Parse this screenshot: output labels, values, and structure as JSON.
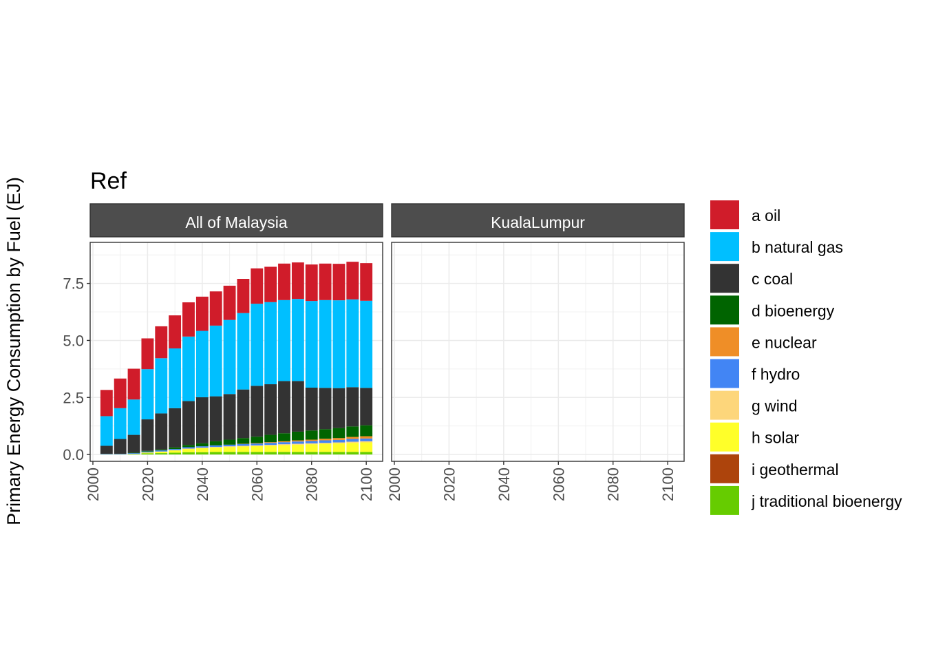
{
  "chart_data": {
    "type": "bar",
    "stacked": true,
    "title": "Ref",
    "ylabel": "Primary Energy Consumption by Fuel (EJ)",
    "xlabel": "",
    "ylim": [
      -0.3,
      9.3
    ],
    "xlim": [
      1999,
      2106
    ],
    "yticks": [
      0.0,
      2.5,
      5.0,
      7.5
    ],
    "ytick_labels": [
      "0.0",
      "2.5",
      "5.0",
      "7.5"
    ],
    "xticks": [
      2000,
      2020,
      2040,
      2060,
      2080,
      2100
    ],
    "xtick_labels": [
      "2000",
      "2020",
      "2040",
      "2060",
      "2080",
      "2100"
    ],
    "grid": true,
    "legend_position": "right",
    "x": [
      2005,
      2010,
      2015,
      2020,
      2025,
      2030,
      2035,
      2040,
      2045,
      2050,
      2055,
      2060,
      2065,
      2070,
      2075,
      2080,
      2085,
      2090,
      2095,
      2100
    ],
    "fuels": [
      {
        "name": "a oil",
        "color": "#d01c2a"
      },
      {
        "name": "b natural gas",
        "color": "#00bfff"
      },
      {
        "name": "c coal",
        "color": "#333333"
      },
      {
        "name": "d bioenergy",
        "color": "#006400"
      },
      {
        "name": "e nuclear",
        "color": "#ef8e27"
      },
      {
        "name": "f hydro",
        "color": "#4285f4"
      },
      {
        "name": "g wind",
        "color": "#fdd67b"
      },
      {
        "name": "h solar",
        "color": "#ffff29"
      },
      {
        "name": "i geothermal",
        "color": "#ad440c"
      },
      {
        "name": "j traditional bioenergy",
        "color": "#66cc00"
      }
    ],
    "panels": [
      {
        "name": "All of Malaysia",
        "series": [
          {
            "name": "a oil",
            "values": [
              1.15,
              1.3,
              1.35,
              1.35,
              1.4,
              1.45,
              1.5,
              1.5,
              1.5,
              1.5,
              1.5,
              1.55,
              1.55,
              1.6,
              1.6,
              1.6,
              1.6,
              1.6,
              1.65,
              1.65
            ]
          },
          {
            "name": "b natural gas",
            "values": [
              1.3,
              1.35,
              1.55,
              2.2,
              2.42,
              2.62,
              2.83,
              2.91,
              3.1,
              3.25,
              3.35,
              3.6,
              3.6,
              3.55,
              3.6,
              3.8,
              3.85,
              3.85,
              3.85,
              3.82
            ]
          },
          {
            "name": "c coal",
            "values": [
              0.35,
              0.65,
              0.78,
              1.38,
              1.58,
              1.72,
              1.92,
              2.02,
              1.97,
              2.0,
              2.13,
              2.23,
              2.22,
              2.29,
              2.22,
              1.88,
              1.81,
              1.75,
              1.72,
              1.64
            ]
          },
          {
            "name": "d bioenergy",
            "values": [
              0.0,
              0.0,
              0.02,
              0.03,
              0.04,
              0.07,
              0.1,
              0.13,
              0.18,
              0.22,
              0.25,
              0.28,
              0.32,
              0.35,
              0.38,
              0.4,
              0.42,
              0.44,
              0.46,
              0.48
            ]
          },
          {
            "name": "e nuclear",
            "values": [
              0,
              0,
              0,
              0,
              0,
              0,
              0,
              0,
              0,
              0,
              0.01,
              0.02,
              0.03,
              0.04,
              0.05,
              0.06,
              0.07,
              0.08,
              0.09,
              0.1
            ]
          },
          {
            "name": "f hydro",
            "values": [
              0.02,
              0.02,
              0.03,
              0.04,
              0.05,
              0.05,
              0.06,
              0.06,
              0.07,
              0.07,
              0.08,
              0.08,
              0.09,
              0.09,
              0.1,
              0.1,
              0.11,
              0.11,
              0.12,
              0.12
            ]
          },
          {
            "name": "g wind",
            "values": [
              0,
              0,
              0,
              0.01,
              0.01,
              0.01,
              0.02,
              0.02,
              0.02,
              0.03,
              0.03,
              0.03,
              0.03,
              0.04,
              0.04,
              0.04,
              0.04,
              0.04,
              0.05,
              0.05
            ]
          },
          {
            "name": "h solar",
            "values": [
              0,
              0,
              0.01,
              0.03,
              0.06,
              0.1,
              0.14,
              0.18,
              0.2,
              0.22,
              0.24,
              0.26,
              0.28,
              0.3,
              0.32,
              0.34,
              0.36,
              0.38,
              0.4,
              0.42
            ]
          },
          {
            "name": "i geothermal",
            "values": [
              0,
              0,
              0,
              0,
              0,
              0,
              0,
              0,
              0,
              0,
              0,
              0,
              0,
              0,
              0,
              0,
              0,
              0,
              0,
              0
            ]
          },
          {
            "name": "j traditional bioenergy",
            "values": [
              0.01,
              0.01,
              0.02,
              0.05,
              0.06,
              0.08,
              0.1,
              0.1,
              0.11,
              0.11,
              0.11,
              0.11,
              0.11,
              0.11,
              0.11,
              0.11,
              0.11,
              0.11,
              0.11,
              0.11
            ]
          }
        ]
      },
      {
        "name": "KualaLumpur",
        "series": []
      }
    ]
  }
}
